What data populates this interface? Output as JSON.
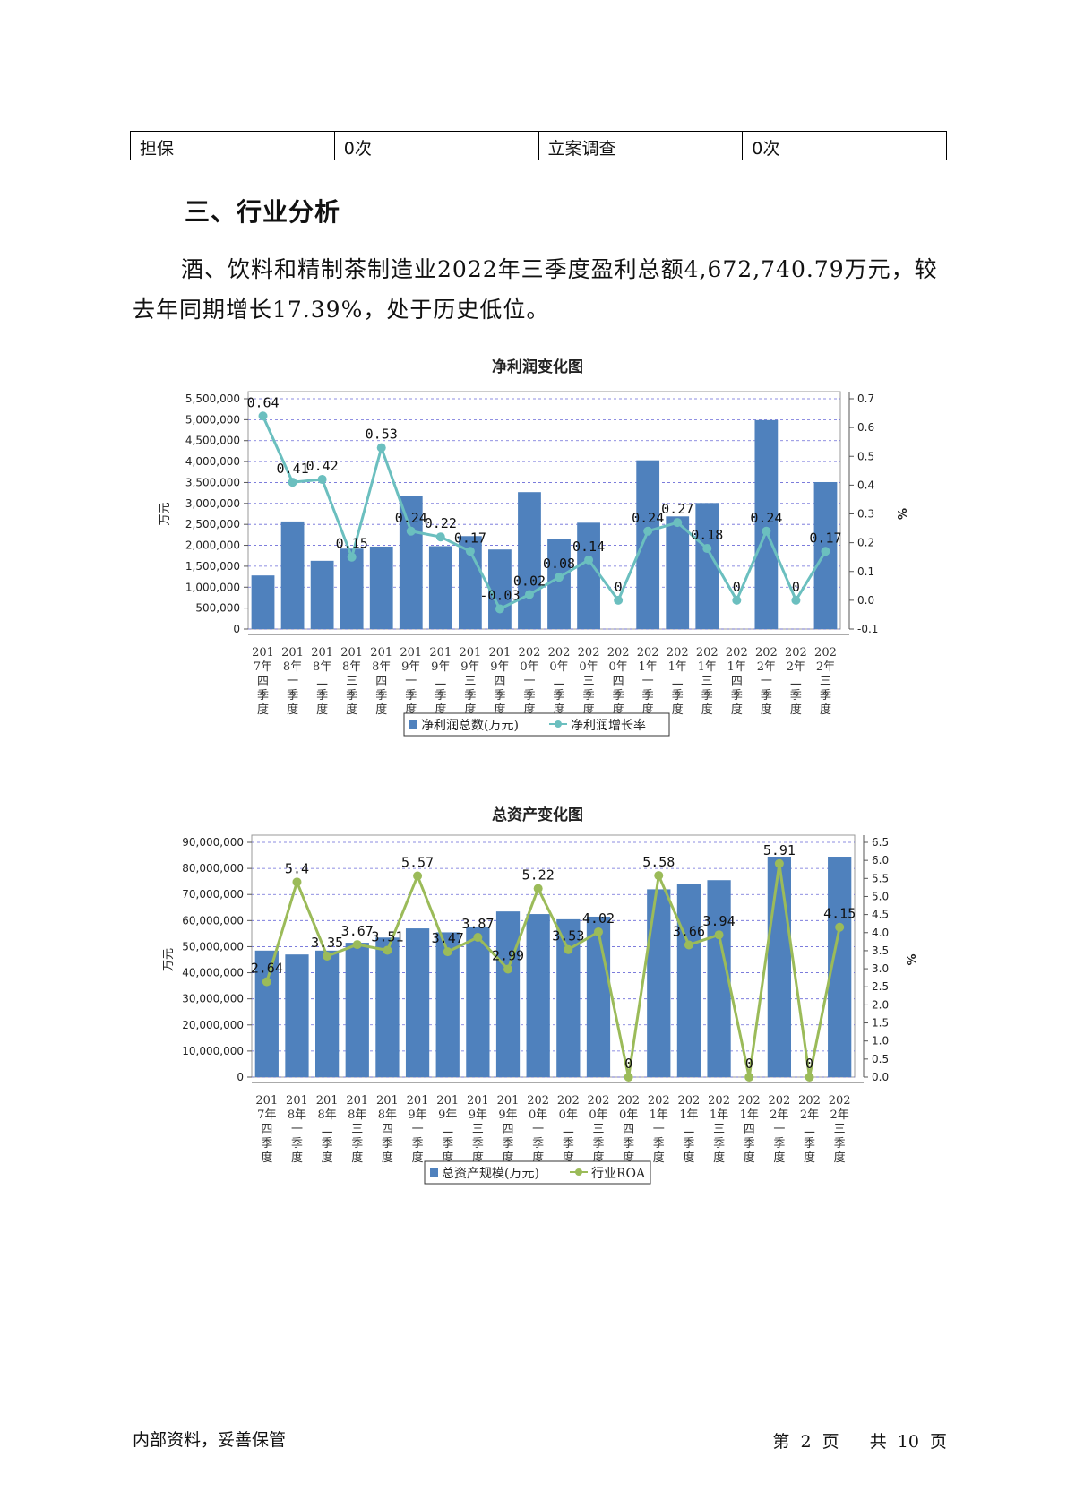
{
  "table": {
    "cells": [
      "担保",
      "0次",
      "立案调查",
      "0次"
    ]
  },
  "section": {
    "title": "三、行业分析"
  },
  "paragraph": {
    "line1": "酒、饮料和精制茶制造业2022年三季度盈利总额4,672,740.79万元，",
    "line2": "较去年同期增长17.39%，处于历史低位。"
  },
  "categories": [
    "2017年四季度",
    "2018年一季度",
    "2018年二季度",
    "2018年三季度",
    "2018年四季度",
    "2019年一季度",
    "2019年二季度",
    "2019年三季度",
    "2019年四季度",
    "2020年一季度",
    "2020年二季度",
    "2020年三季度",
    "2020年四季度",
    "2021年一季度",
    "2021年二季度",
    "2021年三季度",
    "2021年四季度",
    "2022年一季度",
    "2022年二季度",
    "2022年三季度"
  ],
  "chart_data": [
    {
      "type": "bar",
      "title": "净利润变化图",
      "ylabel": "万元",
      "y2label": "%",
      "ylim": [
        0,
        5500000
      ],
      "y2lim": [
        -0.1,
        0.7
      ],
      "yticks": [
        "5,500,000",
        "5,000,000",
        "4,500,000",
        "4,000,000",
        "3,500,000",
        "3,000,000",
        "2,500,000",
        "2,000,000",
        "1,500,000",
        "1,000,000",
        "500,000",
        "0"
      ],
      "y2ticks": [
        "0.7",
        "0.6",
        "0.5",
        "0.4",
        "0.3",
        "0.2",
        "0.1",
        "0.0",
        "-0.1"
      ],
      "grid": true,
      "legend_position": "bottom",
      "series": [
        {
          "name": "净利润总数(万元)",
          "kind": "bar",
          "color": "#4f81bd",
          "values": [
            1280000,
            2570000,
            1630000,
            1920000,
            1970000,
            3180000,
            1980000,
            2220000,
            1900000,
            3270000,
            2140000,
            2540000,
            0,
            4030000,
            2690000,
            3010000,
            0,
            4990000,
            0,
            3510000
          ]
        },
        {
          "name": "净利润增长率",
          "kind": "line",
          "color": "#6bbfbf",
          "values": [
            0.64,
            0.41,
            0.42,
            0.15,
            0.53,
            0.24,
            0.22,
            0.17,
            -0.03,
            0.02,
            0.08,
            0.14,
            0,
            0.24,
            0.27,
            0.18,
            0,
            0.24,
            0,
            0.17
          ],
          "labels": [
            "0.64",
            "0.41",
            "0.42",
            "0.15",
            "0.53",
            "0.24",
            "0.22",
            "0.17",
            "-0.03",
            "0.02",
            "0.08",
            "0.14",
            "0",
            "0.24",
            "0.27",
            "0.18",
            "0",
            "0.24",
            "0",
            "0.17"
          ]
        }
      ]
    },
    {
      "type": "bar",
      "title": "总资产变化图",
      "ylabel": "万元",
      "y2label": "%",
      "ylim": [
        0,
        90000000
      ],
      "y2lim": [
        0,
        6.5
      ],
      "yticks": [
        "90,000,000",
        "80,000,000",
        "70,000,000",
        "60,000,000",
        "50,000,000",
        "40,000,000",
        "30,000,000",
        "20,000,000",
        "10,000,000",
        "0"
      ],
      "y2ticks": [
        "6.5",
        "6.0",
        "5.5",
        "5.0",
        "4.5",
        "4.0",
        "3.5",
        "3.0",
        "2.5",
        "2.0",
        "1.5",
        "1.0",
        "0.5",
        "0.0"
      ],
      "grid": true,
      "legend_position": "bottom",
      "series": [
        {
          "name": "总资产规模(万元)",
          "kind": "bar",
          "color": "#4f81bd",
          "values": [
            48500000,
            47000000,
            48500000,
            51500000,
            53500000,
            57000000,
            55500000,
            57500000,
            63500000,
            62500000,
            60500000,
            61500000,
            0,
            72000000,
            74000000,
            75500000,
            0,
            84500000,
            0,
            84500000
          ]
        },
        {
          "name": "行业ROA",
          "kind": "line",
          "color": "#9bbb59",
          "values": [
            2.64,
            5.4,
            3.35,
            3.67,
            3.51,
            5.57,
            3.47,
            3.87,
            2.99,
            5.22,
            3.53,
            4.02,
            0,
            5.58,
            3.66,
            3.94,
            0,
            5.91,
            0,
            4.15
          ],
          "labels": [
            "2.64",
            "5.4",
            "3.35",
            "3.67",
            "3.51",
            "5.57",
            "3.47",
            "3.87",
            "2.99",
            "5.22",
            "3.53",
            "4.02",
            "0",
            "5.58",
            "3.66",
            "3.94",
            "0",
            "5.91",
            "0",
            "4.15"
          ]
        }
      ]
    }
  ],
  "footer": {
    "left": "内部资料，妥善保管",
    "page_prefix": "第",
    "page_number": "2",
    "page_mid": "页",
    "total_prefix": "共",
    "total_pages": "10",
    "total_suffix": "页"
  }
}
